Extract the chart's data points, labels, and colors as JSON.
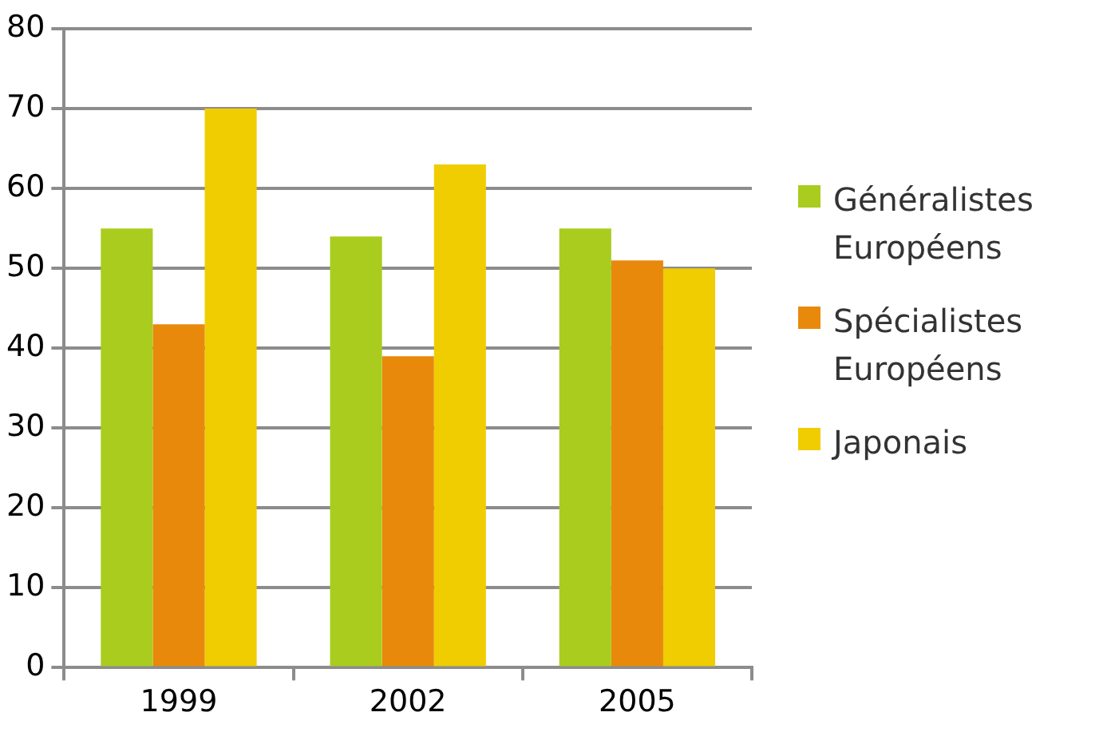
{
  "chart_data": {
    "type": "bar",
    "categories": [
      "1999",
      "2002",
      "2005"
    ],
    "series": [
      {
        "name": "Généralistes Européens",
        "color": "#a9cc1e",
        "values": [
          55,
          54,
          55
        ]
      },
      {
        "name": "Spécialistes Européens",
        "color": "#e8890c",
        "values": [
          43,
          39,
          51
        ]
      },
      {
        "name": "Japonais",
        "color": "#efcd00",
        "values": [
          70,
          63,
          50
        ]
      }
    ],
    "ylim": [
      0,
      80
    ],
    "yticks": [
      0,
      10,
      20,
      30,
      40,
      50,
      60,
      70,
      80
    ],
    "grid": "y",
    "legend": "right"
  }
}
